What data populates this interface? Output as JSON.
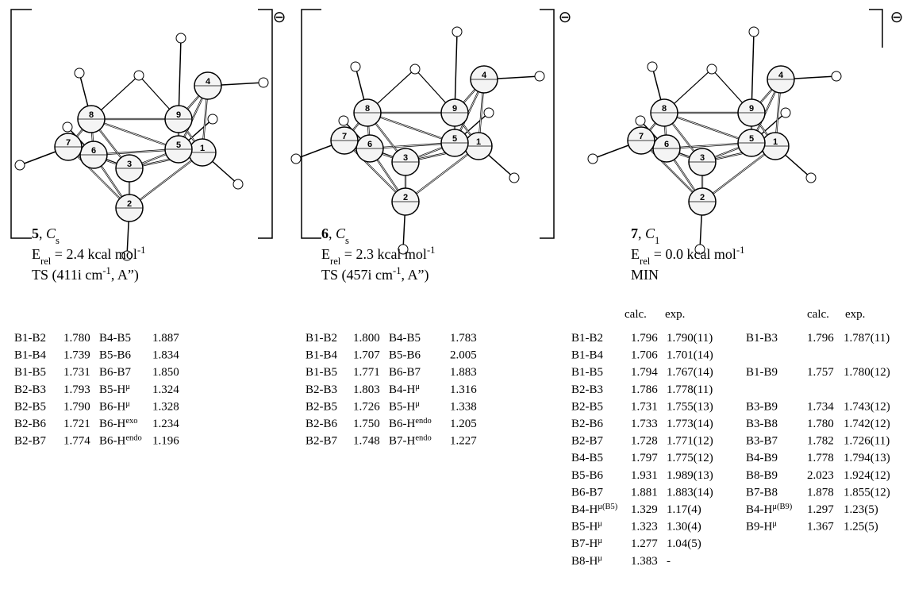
{
  "structures": [
    {
      "number": "5",
      "sep": ", ",
      "point_group": "C",
      "point_group_sub": "s",
      "energy_symbol": "E",
      "energy_sub": "rel",
      "energy_text": " = 2.4 kcal mol",
      "energy_sup": "-1",
      "state_text": "TS (411i cm",
      "state_sup": "-1",
      "state_tail": ", A”)",
      "charge": "⊖",
      "atoms": [
        "1",
        "2",
        "3",
        "4",
        "5",
        "6",
        "7",
        "8",
        "9"
      ]
    },
    {
      "number": "6",
      "sep": ", ",
      "point_group": "C",
      "point_group_sub": "s",
      "energy_symbol": "E",
      "energy_sub": "rel",
      "energy_text": " = 2.3 kcal mol",
      "energy_sup": "-1",
      "state_text": "TS (457i cm",
      "state_sup": "-1",
      "state_tail": ", A”)",
      "charge": "⊖",
      "atoms": [
        "1",
        "2",
        "3",
        "4",
        "5",
        "6",
        "7",
        "8",
        "9"
      ]
    },
    {
      "number": "7",
      "sep": ", ",
      "point_group": "C",
      "point_group_sub": "1",
      "energy_symbol": "E",
      "energy_sub": "rel",
      "energy_text": " = 0.0 kcal mol",
      "energy_sup": "-1",
      "state_text": "MIN",
      "charge": "⊖",
      "atoms": [
        "1",
        "2",
        "3",
        "4",
        "5",
        "6",
        "7",
        "8",
        "9"
      ]
    }
  ],
  "tables": [
    {
      "rows": [
        [
          "B1-B2",
          "1.780",
          "B4-B5",
          "1.887"
        ],
        [
          "B1-B4",
          "1.739",
          "B5-B6",
          "1.834"
        ],
        [
          "B1-B5",
          "1.731",
          "B6-B7",
          "1.850"
        ],
        [
          "B2-B3",
          "1.793",
          {
            "t": "B5-H",
            "sup": "μ"
          },
          "1.324"
        ],
        [
          "B2-B5",
          "1.790",
          {
            "t": "B6-H",
            "sup": "μ"
          },
          "1.328"
        ],
        [
          "B2-B6",
          "1.721",
          {
            "t": "B6-H",
            "sup": "exo"
          },
          "1.234"
        ],
        [
          "B2-B7",
          "1.774",
          {
            "t": "B6-H",
            "sup": "endo"
          },
          "1.196"
        ]
      ]
    },
    {
      "rows": [
        [
          "B1-B2",
          "1.800",
          "B4-B5",
          "1.783"
        ],
        [
          "B1-B4",
          "1.707",
          "B5-B6",
          "2.005"
        ],
        [
          "B1-B5",
          "1.771",
          "B6-B7",
          "1.883"
        ],
        [
          "B2-B3",
          "1.803",
          {
            "t": "B4-H",
            "sup": "μ"
          },
          "1.316"
        ],
        [
          "B2-B5",
          "1.726",
          {
            "t": "B5-H",
            "sup": "μ"
          },
          "1.338"
        ],
        [
          "B2-B6",
          "1.750",
          {
            "t": "B6-H",
            "sup": "endo"
          },
          "1.205"
        ],
        [
          "B2-B7",
          "1.748",
          {
            "t": "B7-H",
            "sup": "endo"
          },
          "1.227"
        ]
      ]
    },
    {
      "headers": [
        "calc.",
        "exp.",
        "calc.",
        "exp."
      ],
      "rows": [
        [
          "B1-B2",
          "1.796",
          "1.790(11)",
          "B1-B3",
          "1.796",
          "1.787(11)"
        ],
        [
          "B1-B4",
          "1.706",
          "1.701(14)",
          null,
          null,
          null
        ],
        [
          "B1-B5",
          "1.794",
          "1.767(14)",
          "B1-B9",
          "1.757",
          "1.780(12)"
        ],
        [
          "B2-B3",
          "1.786",
          "1.778(11)",
          null,
          null,
          null
        ],
        [
          "B2-B5",
          "1.731",
          "1.755(13)",
          "B3-B9",
          "1.734",
          "1.743(12)"
        ],
        [
          "B2-B6",
          "1.733",
          "1.773(14)",
          "B3-B8",
          "1.780",
          "1.742(12)"
        ],
        [
          "B2-B7",
          "1.728",
          "1.771(12)",
          "B3-B7",
          "1.782",
          "1.726(11)"
        ],
        [
          "B4-B5",
          "1.797",
          "1.775(12)",
          "B4-B9",
          "1.778",
          "1.794(13)"
        ],
        [
          "B5-B6",
          "1.931",
          "1.989(13)",
          "B8-B9",
          "2.023",
          "1.924(12)"
        ],
        [
          "B6-B7",
          "1.881",
          "1.883(14)",
          "B7-B8",
          "1.878",
          "1.855(12)"
        ],
        [
          {
            "t": "B4-H",
            "sup": "μ(B5)"
          },
          "1.329",
          "1.17(4)",
          {
            "t": "B4-H",
            "sup": "μ(B9)"
          },
          "1.297",
          "1.23(5)"
        ],
        [
          {
            "t": "B5-H",
            "sup": "μ"
          },
          "1.323",
          "1.30(4)",
          {
            "t": "B9-H",
            "sup": "μ"
          },
          "1.367",
          "1.25(5)"
        ],
        [
          {
            "t": "B7-H",
            "sup": "μ"
          },
          "1.277",
          "1.04(5)",
          null,
          null,
          null
        ],
        [
          {
            "t": "B8-H",
            "sup": "μ"
          },
          "1.383",
          "-",
          null,
          null,
          null
        ]
      ]
    }
  ]
}
